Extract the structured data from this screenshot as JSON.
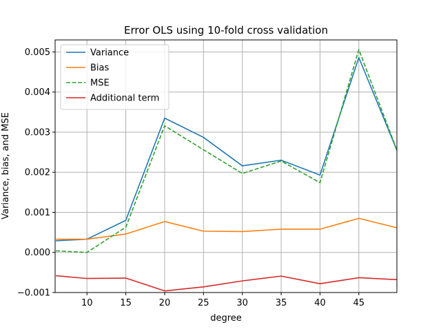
{
  "chart_data": {
    "type": "line",
    "title": "Error OLS using 10-fold cross validation",
    "xlabel": "degree",
    "ylabel": "Variance, bias, and MSE",
    "xlim": [
      5.9,
      49.9
    ],
    "ylim": [
      -0.001,
      0.0053
    ],
    "xticks": [
      10,
      15,
      20,
      25,
      30,
      35,
      40,
      45
    ],
    "xtick_labels": [
      "10",
      "15",
      "20",
      "25",
      "30",
      "35",
      "40",
      "45"
    ],
    "yticks": [
      -0.001,
      0.0,
      0.001,
      0.002,
      0.003,
      0.004,
      0.005
    ],
    "ytick_labels": [
      "−0.001",
      "0.000",
      "0.001",
      "0.002",
      "0.003",
      "0.004",
      "0.005"
    ],
    "grid": true,
    "legend_position": "top-left",
    "x": [
      6,
      10,
      15,
      20,
      25,
      30,
      35,
      40,
      45,
      50
    ],
    "series": [
      {
        "name": "Variance",
        "color": "#1f77b4",
        "dash": "solid",
        "values": [
          0.00029,
          0.00033,
          0.0008,
          0.00335,
          0.00287,
          0.00216,
          0.0023,
          0.00193,
          0.00486,
          0.0025
        ]
      },
      {
        "name": "Bias",
        "color": "#ff7f0e",
        "dash": "solid",
        "values": [
          0.00033,
          0.00033,
          0.00046,
          0.00077,
          0.00053,
          0.00052,
          0.00058,
          0.00058,
          0.00085,
          0.00061
        ]
      },
      {
        "name": "MSE",
        "color": "#2ca02c",
        "dash": "dashed",
        "values": [
          4e-05,
          0.0,
          0.00063,
          0.00316,
          0.00256,
          0.00197,
          0.00228,
          0.00174,
          0.00506,
          0.0025
        ]
      },
      {
        "name": "Additional term",
        "color": "#d62728",
        "dash": "solid",
        "values": [
          -0.00058,
          -0.00065,
          -0.00064,
          -0.00096,
          -0.00086,
          -0.00071,
          -0.00059,
          -0.00078,
          -0.00063,
          -0.00068
        ]
      }
    ]
  }
}
